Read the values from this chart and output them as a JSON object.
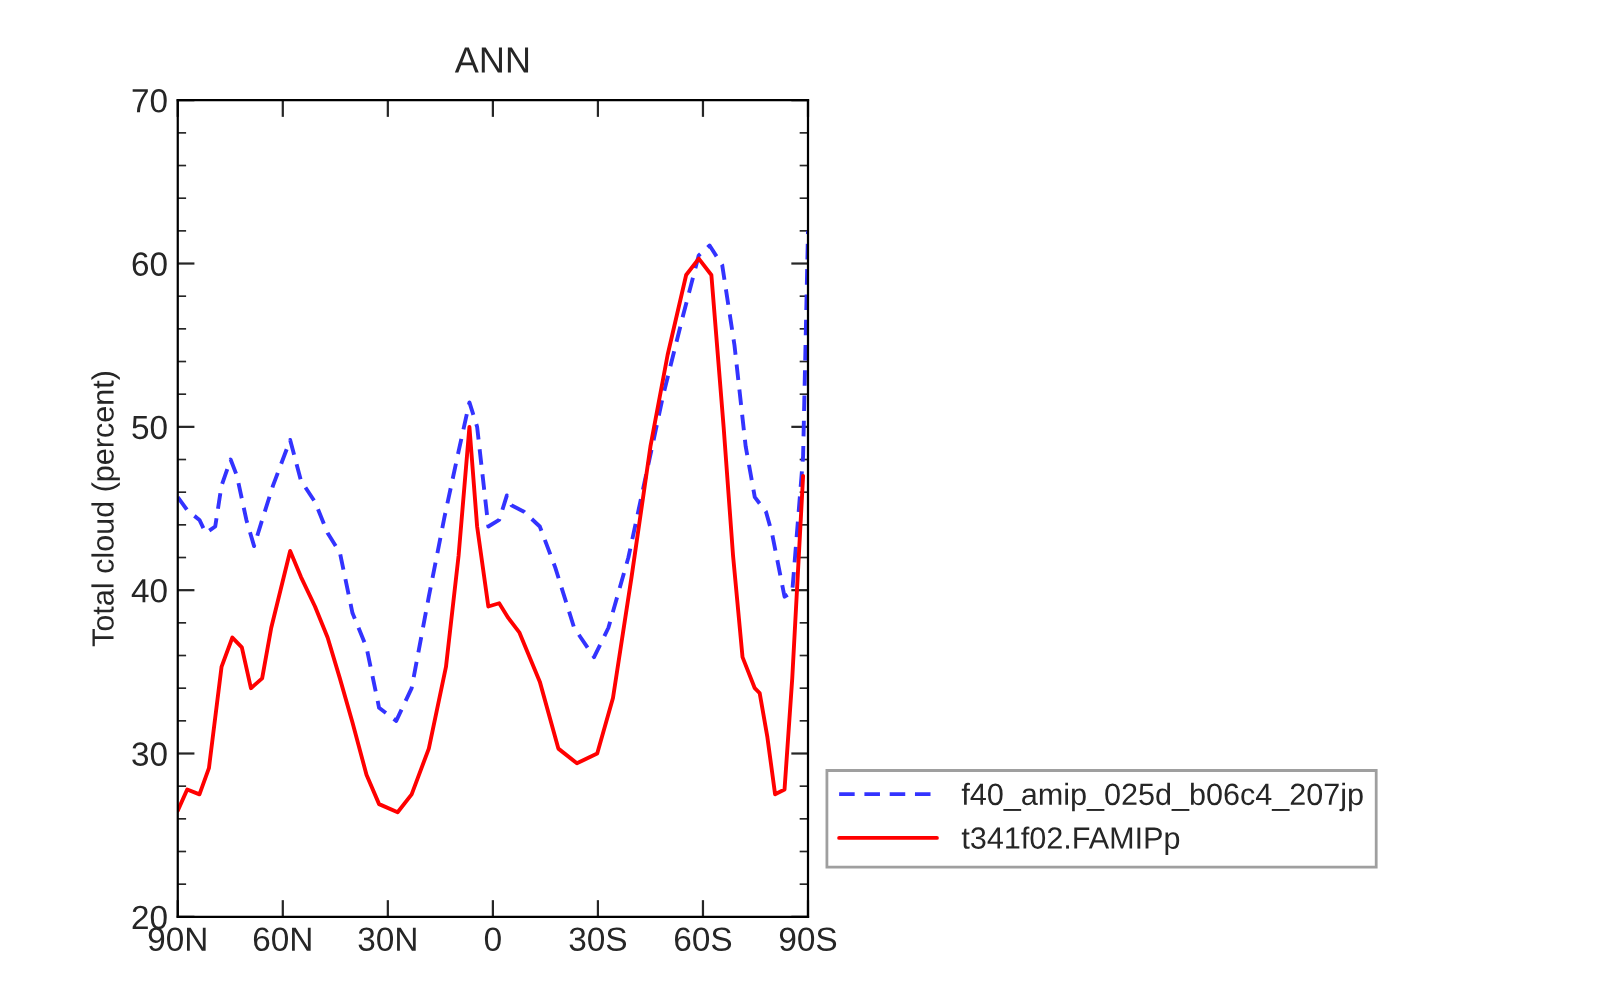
{
  "chart_data": {
    "type": "line",
    "title": "ANN",
    "ylabel": "Total cloud (percent)",
    "xlim": [
      90,
      -90
    ],
    "xticks": [
      {
        "value": 90,
        "label": "90N"
      },
      {
        "value": 60,
        "label": "60N"
      },
      {
        "value": 30,
        "label": "30N"
      },
      {
        "value": 0,
        "label": "0"
      },
      {
        "value": -30,
        "label": "30S"
      },
      {
        "value": -60,
        "label": "60S"
      },
      {
        "value": -90,
        "label": "90S"
      }
    ],
    "ylim": [
      20,
      70
    ],
    "yticks": [
      20,
      30,
      40,
      50,
      60,
      70
    ],
    "grid": false,
    "legend": "right",
    "marker": "none",
    "series": [
      {
        "name": "f40_amip_025d_b06c4_207jp",
        "color": "#3333ff",
        "line_style": "dashed",
        "x": [
          90,
          87.3,
          83.8,
          82.0,
          79.3,
          77.5,
          74.9,
          73.1,
          70.4,
          68.2,
          65.9,
          62.8,
          57.9,
          54.8,
          50.8,
          47.2,
          43.7,
          40.1,
          36.1,
          32.5,
          27.6,
          23.2,
          18.3,
          13.8,
          9.8,
          6.7,
          4.5,
          1.3,
          -1.8,
          -4.0,
          -5.3,
          -8.9,
          -13.4,
          -17.8,
          -23.2,
          -28.9,
          -33.0,
          -38.7,
          -43.7,
          -48.6,
          -54.3,
          -58.8,
          -61.9,
          -65.5,
          -69.0,
          -72.2,
          -74.8,
          -78.0,
          -79.7,
          -83.3,
          -85.5,
          -88.6,
          -90
        ],
        "values": [
          45.7,
          44.9,
          44.3,
          43.5,
          43.9,
          46.4,
          48.0,
          47.0,
          44.3,
          42.7,
          44.3,
          46.4,
          49.2,
          46.7,
          45.4,
          43.5,
          42.3,
          38.6,
          36.5,
          32.8,
          32.0,
          34.0,
          39.6,
          44.5,
          48.5,
          51.5,
          50.0,
          43.9,
          44.3,
          45.8,
          45.2,
          44.8,
          43.9,
          41.4,
          37.7,
          35.9,
          37.7,
          42.0,
          47.0,
          51.9,
          56.8,
          60.5,
          61.1,
          59.9,
          55.0,
          48.8,
          45.7,
          44.8,
          43.5,
          39.6,
          39.9,
          48.2,
          62.0
        ]
      },
      {
        "name": "t341f02.FAMIPp",
        "color": "#ff0000",
        "line_style": "solid",
        "x": [
          90,
          87.3,
          83.8,
          81.1,
          77.5,
          74.4,
          71.7,
          69.1,
          65.9,
          63.3,
          57.9,
          54.8,
          50.8,
          47.2,
          43.7,
          40.1,
          36.1,
          32.5,
          27.2,
          23.2,
          18.3,
          13.4,
          9.8,
          6.7,
          4.5,
          1.3,
          -1.8,
          -4.4,
          -7.6,
          -13.4,
          -18.7,
          -24.0,
          -29.8,
          -34.3,
          -39.6,
          -45.0,
          -49.9,
          -55.2,
          -58.8,
          -62.4,
          -65.9,
          -68.6,
          -71.3,
          -74.8,
          -76.2,
          -78.4,
          -80.6,
          -83.3,
          -85.5,
          -88.6
        ],
        "values": [
          26.5,
          27.8,
          27.5,
          29.1,
          35.3,
          37.1,
          36.5,
          34.0,
          34.6,
          37.7,
          42.4,
          40.8,
          39.0,
          37.1,
          34.6,
          31.9,
          28.7,
          26.9,
          26.4,
          27.5,
          30.3,
          35.3,
          42.1,
          50.0,
          43.9,
          39.0,
          39.2,
          38.3,
          37.4,
          34.4,
          30.3,
          29.4,
          30.0,
          33.4,
          40.8,
          48.8,
          54.4,
          59.3,
          60.3,
          59.3,
          50.0,
          42.1,
          35.9,
          34.0,
          33.7,
          31.0,
          27.5,
          27.8,
          34.6,
          47.0
        ]
      }
    ]
  }
}
